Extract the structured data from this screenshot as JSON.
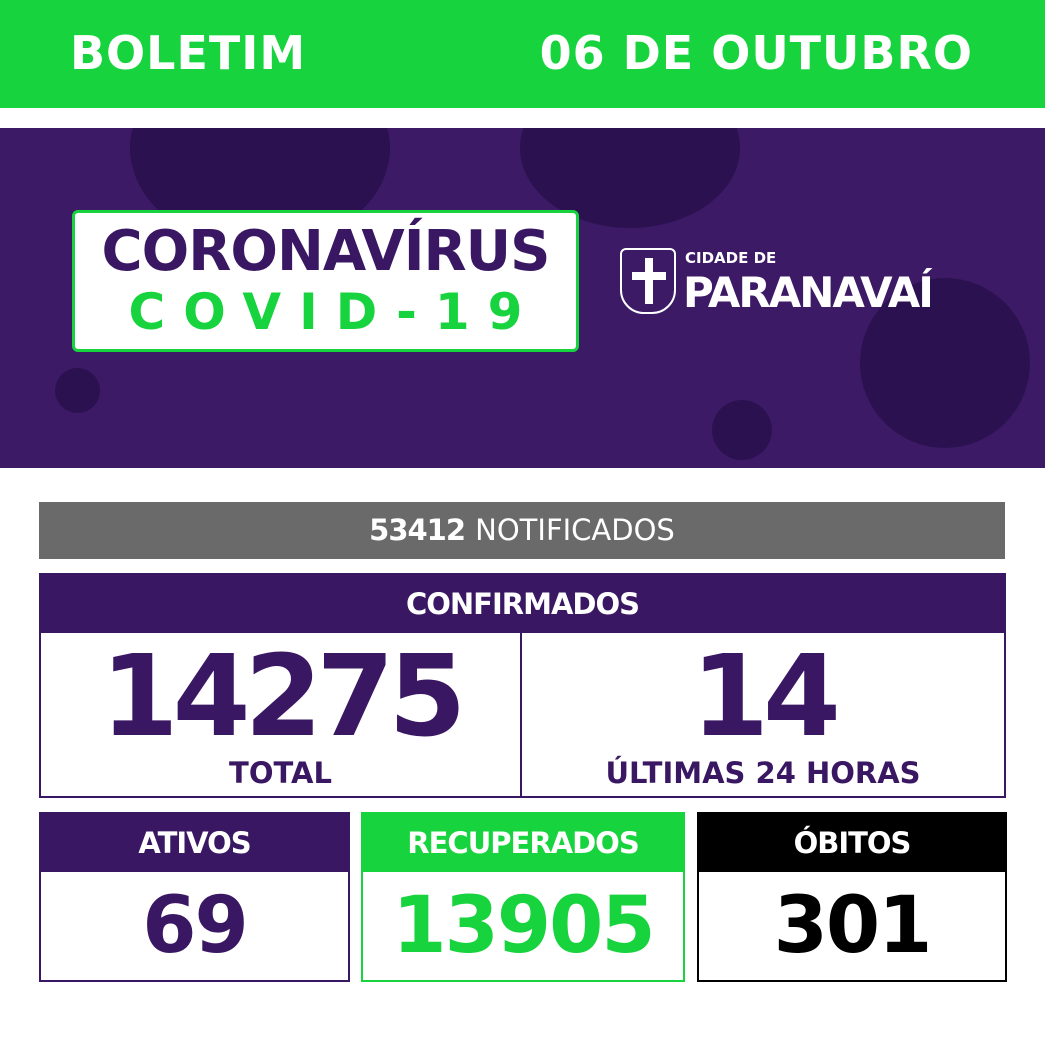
{
  "header": {
    "left": "BOLETIM",
    "right": "06 DE OUTUBRO"
  },
  "banner": {
    "title_line1": "CORONAVÍRUS",
    "title_line2": "COVID-19",
    "logo_small": "CIDADE DE",
    "logo_big": "PARANAVAÍ"
  },
  "notificados": {
    "value": "53412",
    "label": "NOTIFICADOS"
  },
  "confirmados": {
    "title": "CONFIRMADOS",
    "total_value": "14275",
    "total_label": "TOTAL",
    "recent_value": "14",
    "recent_label": "ÚLTIMAS 24 HORAS"
  },
  "ativos": {
    "label": "ATIVOS",
    "value": "69"
  },
  "recuperados": {
    "label": "RECUPERADOS",
    "value": "13905"
  },
  "obitos": {
    "label": "ÓBITOS",
    "value": "301"
  },
  "colors": {
    "green": "#17d33e",
    "purple": "#3a1763",
    "gray": "#6a6a6a",
    "black": "#000000"
  }
}
